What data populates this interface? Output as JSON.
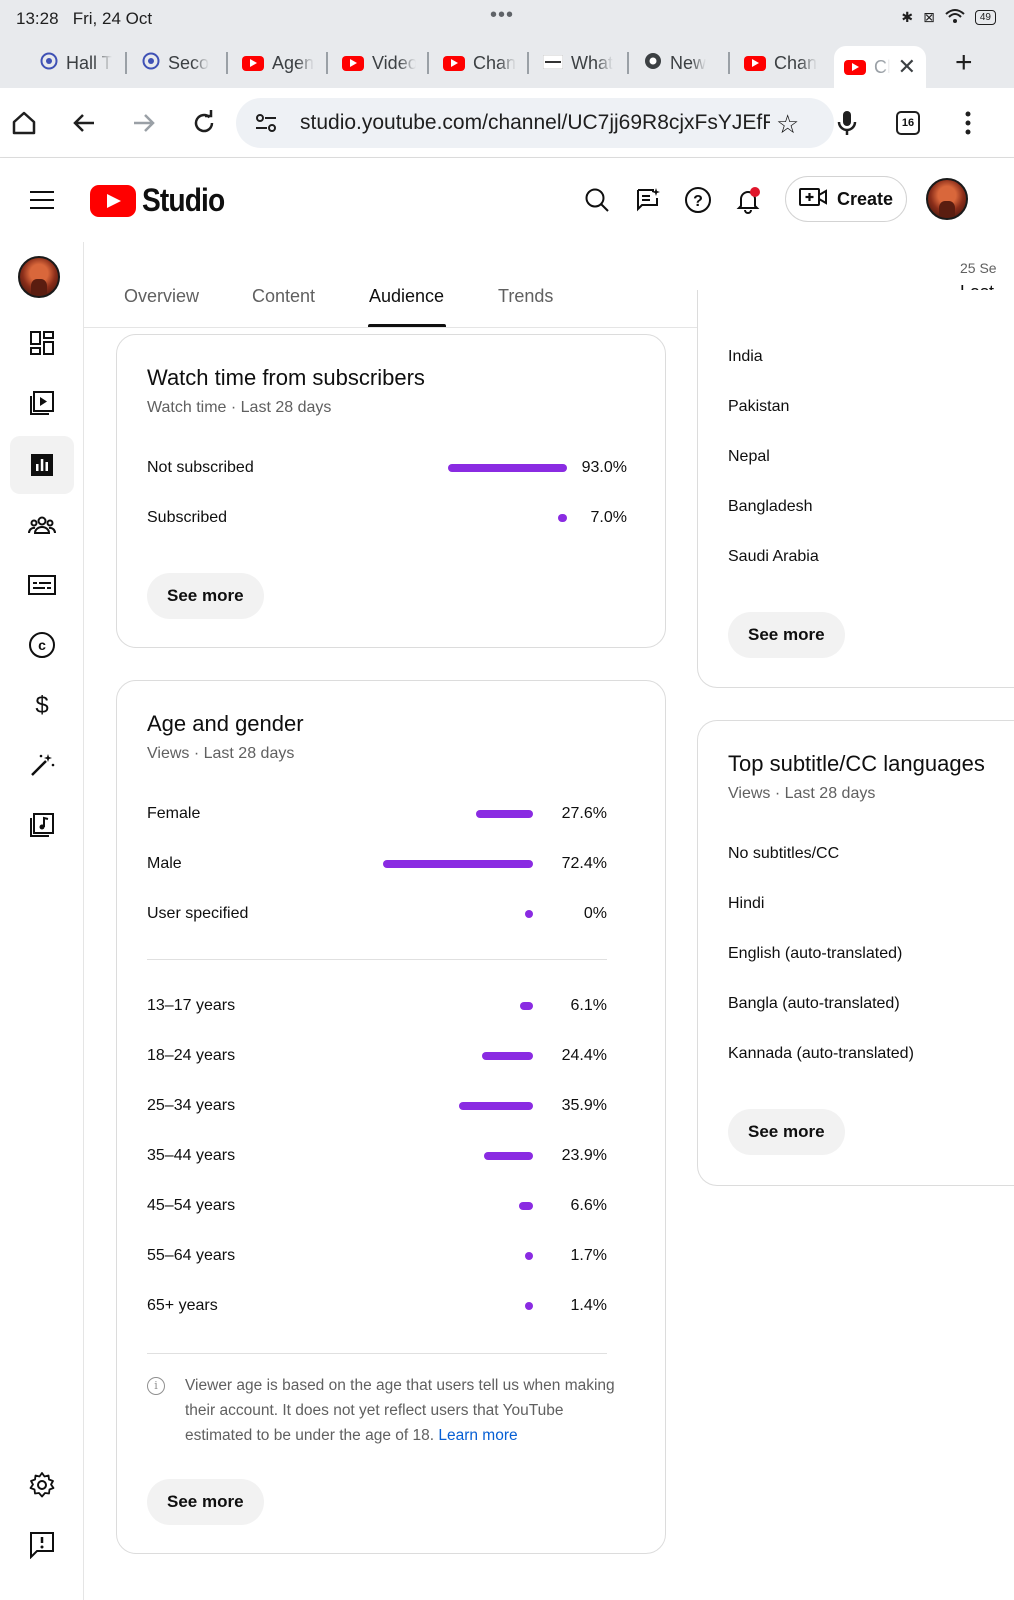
{
  "status_bar": {
    "time": "13:28",
    "date": "Fri, 24 Oct",
    "battery": "49"
  },
  "browser": {
    "tabs": [
      {
        "label": "Hall T",
        "icon": "globe-icon"
      },
      {
        "label": "Seco",
        "icon": "globe-icon"
      },
      {
        "label": "Agen",
        "icon": "youtube-icon"
      },
      {
        "label": "Video",
        "icon": "youtube-icon"
      },
      {
        "label": "Chan",
        "icon": "youtube-icon"
      },
      {
        "label": "What",
        "icon": "page-icon"
      },
      {
        "label": "New",
        "icon": "chrome-icon"
      },
      {
        "label": "Chan",
        "icon": "youtube-icon"
      },
      {
        "label": "Ch",
        "icon": "youtube-icon"
      }
    ],
    "url": "studio.youtube.com/channel/UC7jj69R8cjxFsYJEfF",
    "tab_count": "16"
  },
  "header": {
    "logo_text": "Studio",
    "create_label": "Create"
  },
  "analytics_tabs": [
    {
      "label": "Overview"
    },
    {
      "label": "Content"
    },
    {
      "label": "Audience"
    },
    {
      "label": "Trends"
    }
  ],
  "active_tab": "Audience",
  "date_range": {
    "range": "25 Se",
    "label": "Last"
  },
  "watch_time_card": {
    "title": "Watch time from subscribers",
    "subtitle": "Watch time · Last 28 days",
    "rows": [
      {
        "label": "Not subscribed",
        "value": "93.0%",
        "share": 93.0
      },
      {
        "label": "Subscribed",
        "value": "7.0%",
        "share": 7.0
      }
    ],
    "see_more": "See more"
  },
  "geography_card": {
    "countries": [
      "India",
      "Pakistan",
      "Nepal",
      "Bangladesh",
      "Saudi Arabia"
    ],
    "see_more": "See more"
  },
  "age_gender_card": {
    "title": "Age and gender",
    "subtitle": "Views · Last 28 days",
    "gender": [
      {
        "label": "Female",
        "value": "27.6%",
        "share": 27.6
      },
      {
        "label": "Male",
        "value": "72.4%",
        "share": 72.4
      },
      {
        "label": "User specified",
        "value": "0%",
        "share": 0
      }
    ],
    "age": [
      {
        "label": "13–17 years",
        "value": "6.1%",
        "share": 6.1
      },
      {
        "label": "18–24 years",
        "value": "24.4%",
        "share": 24.4
      },
      {
        "label": "25–34 years",
        "value": "35.9%",
        "share": 35.9
      },
      {
        "label": "35–44 years",
        "value": "23.9%",
        "share": 23.9
      },
      {
        "label": "45–54 years",
        "value": "6.6%",
        "share": 6.6
      },
      {
        "label": "55–64 years",
        "value": "1.7%",
        "share": 1.7
      },
      {
        "label": "65+ years",
        "value": "1.4%",
        "share": 1.4
      }
    ],
    "note": "Viewer age is based on the age that users tell us when making their account. It does not yet reflect users that YouTube estimated to be under the age of 18.",
    "learn_more": "Learn more",
    "see_more": "See more"
  },
  "subtitle_card": {
    "title": "Top subtitle/CC languages",
    "subtitle": "Views · Last 28 days",
    "languages": [
      "No subtitles/CC",
      "Hindi",
      "English (auto-translated)",
      "Bangla (auto-translated)",
      "Kannada (auto-translated)"
    ],
    "see_more": "See more"
  },
  "colors": {
    "bar": "#8a2be2",
    "brand_red": "#ff0000",
    "link": "#065fd4"
  }
}
